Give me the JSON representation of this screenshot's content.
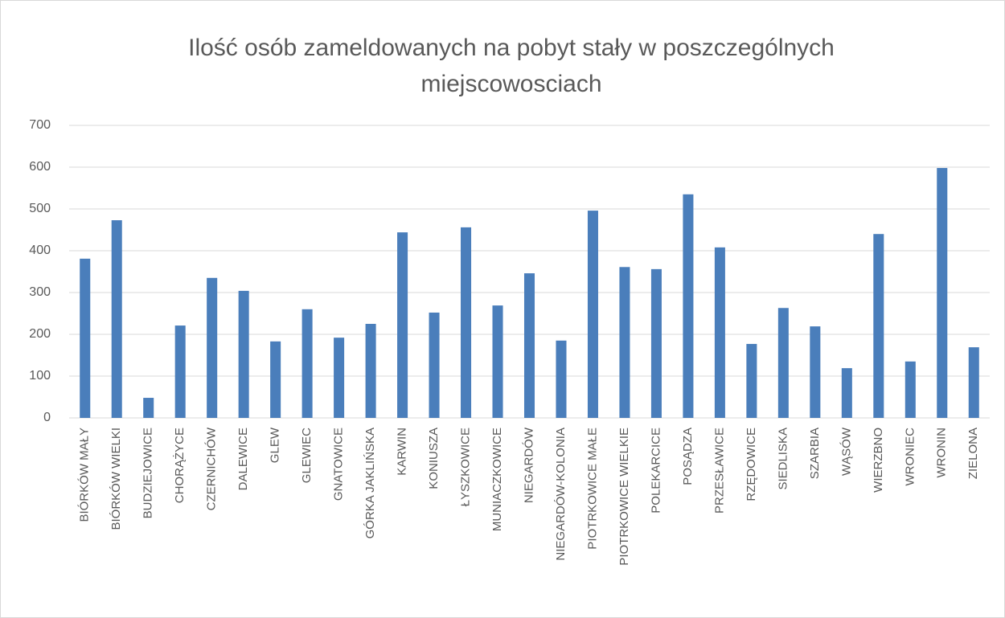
{
  "chart_data": {
    "type": "bar",
    "title": "Ilość osób zameldowanych na pobyt stały w poszczególnych miejscowosciach",
    "categories": [
      "BIÓRKÓW MAŁY",
      "BIÓRKÓW WIELKI",
      "BUDZIEJOWICE",
      "CHORĄŻYCE",
      "CZERNICHÓW",
      "DALEWICE",
      "GLEW",
      "GLEWIEC",
      "GNATOWICE",
      "GÓRKA JAKLIŃSKA",
      "KARWIN",
      "KONIUSZA",
      "ŁYSZKOWICE",
      "MUNIACZKOWICE",
      "NIEGARDÓW",
      "NIEGARDÓW-KOLONIA",
      "PIOTRKOWICE MAŁE",
      "PIOTRKOWICE WIELKIE",
      "POLEKARCICE",
      "POSĄDZA",
      "PRZESŁAWICE",
      "RZĘDOWICE",
      "SIEDLISKA",
      "SZARBIA",
      "WĄSÓW",
      "WIERZBNO",
      "WRONIEC",
      "WRONIN",
      "ZIELONA"
    ],
    "values": [
      381,
      473,
      48,
      221,
      335,
      304,
      183,
      260,
      192,
      225,
      444,
      252,
      456,
      269,
      346,
      185,
      496,
      361,
      356,
      535,
      408,
      177,
      263,
      219,
      119,
      440,
      135,
      598,
      169
    ],
    "color": "#4a7ebb",
    "ylim": [
      0,
      700
    ],
    "yticks": [
      0,
      100,
      200,
      300,
      400,
      500,
      600,
      700
    ],
    "grid": true
  }
}
